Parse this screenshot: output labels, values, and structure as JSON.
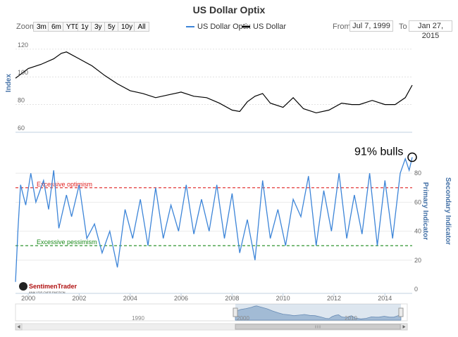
{
  "title": "US Dollar Optix",
  "zoom": {
    "label": "Zoom",
    "buttons": [
      "3m",
      "6m",
      "YTD",
      "1y",
      "3y",
      "5y",
      "10y",
      "All"
    ]
  },
  "legend": {
    "optix_label": "US Dollar Optix",
    "dollar_label": "US Dollar"
  },
  "range": {
    "from_label": "From",
    "from_value": "Jul 7, 1999",
    "to_label": "To",
    "to_value": "Jan 27, 2015"
  },
  "colors": {
    "optix": "#3d85d8",
    "dollar": "#000000",
    "excessive_optimism": "#e02020",
    "excessive_pessimism": "#1a8a1a",
    "callout_circle": "#000000"
  },
  "annotation": {
    "text": "91% bulls",
    "value": 91
  },
  "watermark": {
    "name": "SentimenTrader",
    "tagline": "ANALYSIS OVER EMOTION"
  },
  "chart_data": {
    "type": "line",
    "x_label_years": [
      "2000",
      "2002",
      "2004",
      "2006",
      "2008",
      "2010",
      "2012",
      "2014"
    ],
    "xlim": [
      1999.5,
      2015.07
    ],
    "upper_panel": {
      "ylabel": "Index",
      "ylim": [
        60,
        125
      ],
      "yticks": [
        "60",
        "80",
        "100",
        "120"
      ],
      "series": [
        {
          "name": "US Dollar",
          "x": [
            1999.5,
            2000.0,
            2000.5,
            2001.0,
            2001.3,
            2001.5,
            2002.0,
            2002.5,
            2003.0,
            2003.5,
            2004.0,
            2004.5,
            2005.0,
            2005.5,
            2006.0,
            2006.5,
            2007.0,
            2007.5,
            2008.0,
            2008.3,
            2008.6,
            2008.9,
            2009.2,
            2009.5,
            2010.0,
            2010.4,
            2010.8,
            2011.3,
            2011.8,
            2012.3,
            2012.7,
            2013.0,
            2013.5,
            2014.0,
            2014.4,
            2014.8,
            2015.07
          ],
          "values": [
            99,
            106,
            109,
            113,
            117,
            118,
            113,
            108,
            101,
            95,
            90,
            88,
            85,
            87,
            89,
            86,
            85,
            81,
            76,
            75,
            82,
            86,
            88,
            81,
            78,
            85,
            77,
            74,
            76,
            81,
            80,
            80,
            83,
            80,
            80,
            85,
            94
          ]
        }
      ]
    },
    "lower_panel": {
      "ylabel": "Primary Indicator",
      "ylabel2": "Secondary Indicator",
      "ylim": [
        0,
        100
      ],
      "yticks": [
        "0",
        "20",
        "40",
        "60",
        "80"
      ],
      "excessive_optimism": {
        "label": "Excessive optimism",
        "value": 70
      },
      "excessive_pessimism": {
        "label": "Excessive pessimism",
        "value": 30
      },
      "series": [
        {
          "name": "US Dollar Optix",
          "x": [
            1999.5,
            1999.6,
            1999.7,
            1999.9,
            2000.1,
            2000.3,
            2000.6,
            2000.8,
            2001.0,
            2001.2,
            2001.5,
            2001.7,
            2002.0,
            2002.3,
            2002.6,
            2002.9,
            2003.2,
            2003.5,
            2003.8,
            2004.1,
            2004.4,
            2004.7,
            2005.0,
            2005.3,
            2005.6,
            2005.9,
            2006.2,
            2006.5,
            2006.8,
            2007.1,
            2007.4,
            2007.7,
            2008.0,
            2008.3,
            2008.6,
            2008.9,
            2009.2,
            2009.5,
            2009.8,
            2010.1,
            2010.4,
            2010.7,
            2011.0,
            2011.3,
            2011.6,
            2011.9,
            2012.2,
            2012.5,
            2012.8,
            2013.1,
            2013.4,
            2013.7,
            2014.0,
            2014.3,
            2014.6,
            2014.8,
            2014.95,
            2015.07
          ],
          "values": [
            5,
            42,
            72,
            58,
            80,
            60,
            75,
            55,
            82,
            42,
            65,
            50,
            72,
            35,
            45,
            25,
            40,
            15,
            55,
            35,
            62,
            30,
            70,
            35,
            58,
            40,
            72,
            38,
            62,
            40,
            72,
            35,
            66,
            25,
            48,
            20,
            75,
            35,
            55,
            30,
            62,
            50,
            78,
            30,
            68,
            40,
            80,
            35,
            65,
            38,
            80,
            30,
            75,
            35,
            80,
            90,
            82,
            91
          ]
        }
      ]
    }
  },
  "navigator": {
    "years": [
      "1990",
      "2000",
      "2010"
    ]
  }
}
